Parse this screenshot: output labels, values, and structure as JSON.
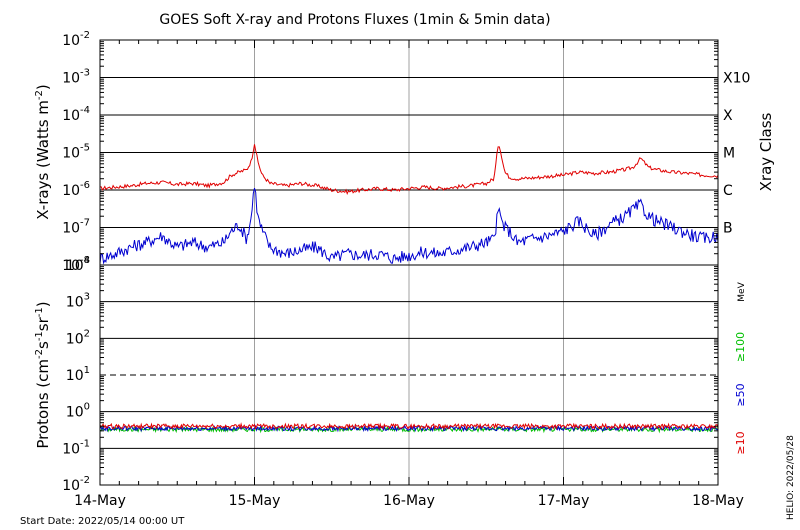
{
  "chart_data": [
    {
      "type": "line",
      "title": "GOES Soft X-ray and Protons Fluxes   (1min & 5min data)",
      "ylabel_main": "X-rays (Watts m",
      "ylabel_sup": "-2",
      "ylabel_close": ")",
      "y_scale": "log",
      "ylim": [
        1e-08,
        0.01
      ],
      "y_ticks": [
        {
          "base": "10",
          "exp": "-8"
        },
        {
          "base": "10",
          "exp": "-7"
        },
        {
          "base": "10",
          "exp": "-6"
        },
        {
          "base": "10",
          "exp": "-5"
        },
        {
          "base": "10",
          "exp": "-4"
        },
        {
          "base": "10",
          "exp": "-3"
        },
        {
          "base": "10",
          "exp": "-2"
        }
      ],
      "right_axis_label": "Xray Class",
      "class_labels": [
        {
          "label": "B",
          "flux": 1e-07
        },
        {
          "label": "C",
          "flux": 1e-06
        },
        {
          "label": "M",
          "flux": 1e-05
        },
        {
          "label": "X",
          "flux": 0.0001
        },
        {
          "label": "X10",
          "flux": 0.001
        }
      ],
      "grid": "horizontal lines at each decade; vertical lines at day boundaries",
      "x_range_days": [
        0,
        4
      ],
      "series": [
        {
          "color": "#e00000",
          "x_days": [
            0,
            0.1,
            0.2,
            0.3,
            0.4,
            0.5,
            0.6,
            0.7,
            0.8,
            0.85,
            0.9,
            0.95,
            0.98,
            1.0,
            1.02,
            1.05,
            1.1,
            1.2,
            1.3,
            1.4,
            1.5,
            1.6,
            1.7,
            1.8,
            1.9,
            2.0,
            2.1,
            2.2,
            2.3,
            2.4,
            2.5,
            2.55,
            2.58,
            2.6,
            2.62,
            2.65,
            2.7,
            2.8,
            2.9,
            3.0,
            3.1,
            3.2,
            3.3,
            3.4,
            3.45,
            3.5,
            3.55,
            3.6,
            3.7,
            3.8,
            3.9,
            4.0
          ],
          "values": [
            1.1e-06,
            1.2e-06,
            1.3e-06,
            1.5e-06,
            1.6e-06,
            1.4e-06,
            1.5e-06,
            1.3e-06,
            1.6e-06,
            2.5e-06,
            3e-06,
            3.5e-06,
            6e-06,
            1.8e-05,
            6e-06,
            2.5e-06,
            1.5e-06,
            1.3e-06,
            1.5e-06,
            1.3e-06,
            1e-06,
            9e-07,
            1e-06,
            1.1e-06,
            1e-06,
            1.1e-06,
            1.2e-06,
            1.1e-06,
            1.2e-06,
            1.3e-06,
            1.5e-06,
            2e-06,
            1.9e-05,
            8e-06,
            3e-06,
            2.2e-06,
            2e-06,
            2.1e-06,
            2.3e-06,
            2.5e-06,
            3e-06,
            2.8e-06,
            3e-06,
            3.5e-06,
            4e-06,
            7e-06,
            4e-06,
            3.5e-06,
            3e-06,
            2.8e-06,
            2.5e-06,
            2.4e-06
          ]
        },
        {
          "color": "#0000d0",
          "x_days": [
            0,
            0.1,
            0.2,
            0.3,
            0.4,
            0.5,
            0.6,
            0.7,
            0.8,
            0.85,
            0.9,
            0.95,
            0.98,
            1.0,
            1.02,
            1.05,
            1.1,
            1.2,
            1.3,
            1.4,
            1.5,
            1.6,
            1.7,
            1.8,
            1.9,
            2.0,
            2.1,
            2.2,
            2.3,
            2.4,
            2.5,
            2.55,
            2.58,
            2.6,
            2.62,
            2.65,
            2.7,
            2.8,
            2.9,
            3.0,
            3.1,
            3.2,
            3.3,
            3.4,
            3.45,
            3.5,
            3.55,
            3.6,
            3.7,
            3.8,
            3.9,
            4.0
          ],
          "values": [
            1.5e-08,
            2e-08,
            3e-08,
            4e-08,
            6e-08,
            3e-08,
            4e-08,
            3e-08,
            4e-08,
            8e-08,
            1.2e-07,
            5e-08,
            2e-07,
            1.6e-06,
            2e-07,
            8e-08,
            3e-08,
            2e-08,
            2.5e-08,
            3e-08,
            1.5e-08,
            2e-08,
            1.8e-08,
            2e-08,
            1.5e-08,
            1.8e-08,
            2.2e-08,
            2e-08,
            2.5e-08,
            3e-08,
            4e-08,
            5e-08,
            3e-07,
            1.5e-07,
            1e-07,
            8e-08,
            4e-08,
            5e-08,
            6e-08,
            8e-08,
            1.5e-07,
            6e-08,
            1.2e-07,
            2e-07,
            3e-07,
            4e-07,
            2e-07,
            1.5e-07,
            1e-07,
            7e-08,
            5e-08,
            6e-08
          ]
        }
      ]
    },
    {
      "type": "line",
      "ylabel_main": "Protons (cm",
      "ylabel_sup1": "-2",
      "ylabel_mid1": "s",
      "ylabel_sup2": "-1",
      "ylabel_mid2": "sr",
      "ylabel_sup3": "-1",
      "ylabel_close": ")",
      "y_scale": "log",
      "ylim": [
        0.01,
        10000
      ],
      "y_ticks": [
        {
          "base": "10",
          "exp": "-2"
        },
        {
          "base": "10",
          "exp": "-1"
        },
        {
          "base": "10",
          "exp": "0"
        },
        {
          "base": "10",
          "exp": "1"
        },
        {
          "base": "10",
          "exp": "2"
        },
        {
          "base": "10",
          "exp": "3"
        },
        {
          "base": "10",
          "exp": "4"
        }
      ],
      "threshold_line": 10,
      "energy_labels": [
        {
          "label": "≥10",
          "color": "#e00000"
        },
        {
          "label": "≥50",
          "color": "#0000d0"
        },
        {
          "label": "≥100",
          "color": "#00c000"
        }
      ],
      "unit_label": "MeV",
      "x_ticks": [
        "14-May",
        "15-May",
        "16-May",
        "17-May",
        "18-May"
      ],
      "x_range_days": [
        0,
        4
      ],
      "series": [
        {
          "color": "#00c000",
          "level": 0.33
        },
        {
          "color": "#0000d0",
          "level": 0.35
        },
        {
          "color": "#e00000",
          "level": 0.4
        }
      ]
    }
  ],
  "footer": {
    "start_date": "Start Date: 2022/05/14 00:00 UT",
    "credit": "HELIO: 2022/05/28"
  }
}
